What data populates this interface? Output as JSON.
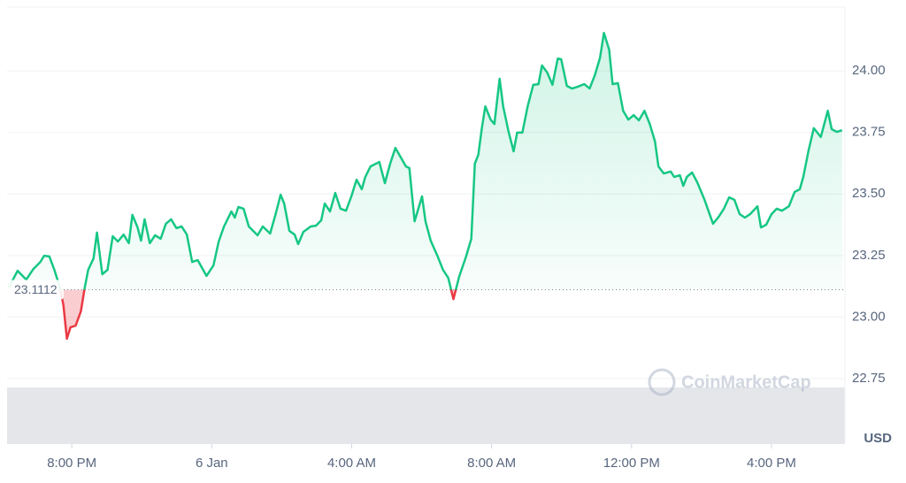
{
  "chart_data": {
    "type": "line",
    "x": [
      -5.8,
      -5.55,
      -5.3,
      -5.1,
      -4.9,
      -4.79,
      -4.64,
      -4.49,
      -4.34,
      -4.24,
      -4.14,
      -4.04,
      -3.89,
      -3.74,
      -3.63,
      -3.53,
      -3.38,
      -3.28,
      -3.13,
      -2.98,
      -2.83,
      -2.68,
      -2.52,
      -2.37,
      -2.27,
      -2.12,
      -2.02,
      -1.92,
      -1.77,
      -1.62,
      -1.46,
      -1.31,
      -1.16,
      -1.01,
      -0.86,
      -0.71,
      -0.56,
      -0.4,
      -0.15,
      0.05,
      0.2,
      0.35,
      0.56,
      0.66,
      0.76,
      0.91,
      1.06,
      1.31,
      1.46,
      1.67,
      1.82,
      1.97,
      2.07,
      2.22,
      2.37,
      2.47,
      2.62,
      2.83,
      2.98,
      3.13,
      3.23,
      3.38,
      3.53,
      3.68,
      3.84,
      3.99,
      4.14,
      4.29,
      4.39,
      4.54,
      4.79,
      4.95,
      5.1,
      5.25,
      5.55,
      5.65,
      5.8,
      6.01,
      6.11,
      6.26,
      6.46,
      6.61,
      6.76,
      6.91,
      7.07,
      7.27,
      7.42,
      7.52,
      7.62,
      7.72,
      7.82,
      7.97,
      8.08,
      8.23,
      8.33,
      8.48,
      8.63,
      8.73,
      8.88,
      9.03,
      9.19,
      9.34,
      9.44,
      9.59,
      9.74,
      9.89,
      9.99,
      10.15,
      10.3,
      10.45,
      10.65,
      10.8,
      10.95,
      11.1,
      11.21,
      11.36,
      11.46,
      11.61,
      11.76,
      11.91,
      12.06,
      12.21,
      12.37,
      12.52,
      12.67,
      12.77,
      12.92,
      13.12,
      13.22,
      13.38,
      13.48,
      13.58,
      13.73,
      13.88,
      14.08,
      14.33,
      14.49,
      14.64,
      14.79,
      14.94,
      15.09,
      15.24,
      15.39,
      15.6,
      15.7,
      15.85,
      16.0,
      16.15,
      16.3,
      16.5,
      16.66,
      16.81,
      16.91,
      17.06,
      17.21,
      17.41,
      17.61,
      17.72,
      17.87,
      18.02
    ],
    "values": [
      23.12,
      23.188,
      23.152,
      23.195,
      23.224,
      23.249,
      23.246,
      23.188,
      23.12,
      23.048,
      22.912,
      22.958,
      22.965,
      23.023,
      23.12,
      23.192,
      23.238,
      23.343,
      23.174,
      23.192,
      23.328,
      23.307,
      23.335,
      23.3,
      23.415,
      23.364,
      23.31,
      23.397,
      23.3,
      23.332,
      23.318,
      23.379,
      23.397,
      23.361,
      23.368,
      23.335,
      23.224,
      23.231,
      23.167,
      23.21,
      23.307,
      23.368,
      23.429,
      23.404,
      23.447,
      23.44,
      23.368,
      23.332,
      23.368,
      23.339,
      23.415,
      23.497,
      23.461,
      23.35,
      23.335,
      23.296,
      23.346,
      23.368,
      23.371,
      23.393,
      23.461,
      23.429,
      23.504,
      23.44,
      23.432,
      23.49,
      23.558,
      23.519,
      23.569,
      23.612,
      23.63,
      23.544,
      23.623,
      23.687,
      23.612,
      23.605,
      23.389,
      23.49,
      23.389,
      23.31,
      23.246,
      23.192,
      23.159,
      23.073,
      23.163,
      23.246,
      23.318,
      23.623,
      23.659,
      23.767,
      23.856,
      23.802,
      23.784,
      23.968,
      23.856,
      23.756,
      23.673,
      23.749,
      23.749,
      23.856,
      23.943,
      23.946,
      24.022,
      23.993,
      23.943,
      24.05,
      24.047,
      23.939,
      23.928,
      23.935,
      23.946,
      23.928,
      23.982,
      24.054,
      24.154,
      24.086,
      23.946,
      23.95,
      23.838,
      23.802,
      23.82,
      23.799,
      23.838,
      23.784,
      23.713,
      23.612,
      23.583,
      23.591,
      23.569,
      23.576,
      23.533,
      23.569,
      23.587,
      23.547,
      23.479,
      23.379,
      23.407,
      23.44,
      23.486,
      23.476,
      23.418,
      23.404,
      23.418,
      23.45,
      23.364,
      23.375,
      23.418,
      23.44,
      23.432,
      23.45,
      23.508,
      23.519,
      23.569,
      23.677,
      23.767,
      23.731,
      23.838,
      23.763,
      23.752,
      23.759
    ],
    "baseline": 23.1112,
    "color_up": "#16c784",
    "color_down": "#ea3943",
    "xlim": [
      -5.85,
      18.1
    ],
    "xticks": [
      {
        "value": -4,
        "label": "8:00 PM"
      },
      {
        "value": 0,
        "label": "6 Jan"
      },
      {
        "value": 4,
        "label": "4:00 AM"
      },
      {
        "value": 8,
        "label": "8:00 AM"
      },
      {
        "value": 12,
        "label": "12:00 PM"
      },
      {
        "value": 16,
        "label": "4:00 PM"
      }
    ],
    "ylim": [
      22.484,
      24.259
    ],
    "yticks": [
      {
        "value": 22.75,
        "label": "22.75"
      },
      {
        "value": 23,
        "label": "23.00"
      },
      {
        "value": 23.25,
        "label": "23.25"
      },
      {
        "value": 23.5,
        "label": "23.50"
      },
      {
        "value": 23.75,
        "label": "23.75"
      },
      {
        "value": 24,
        "label": "24.00"
      }
    ],
    "grid": true,
    "currency": "USD",
    "watermark": "CoinMarketCap"
  }
}
